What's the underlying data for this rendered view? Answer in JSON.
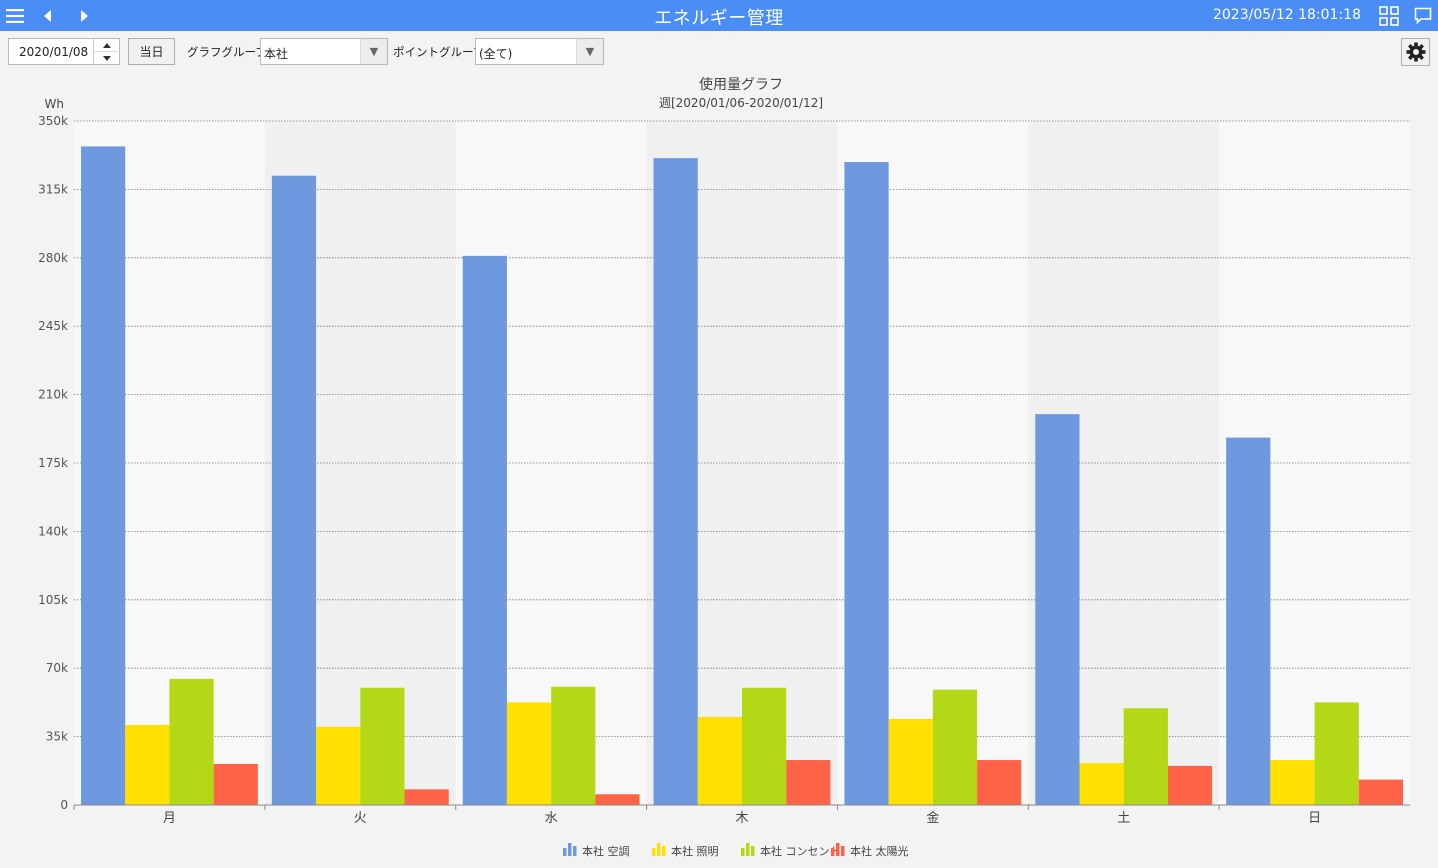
{
  "app": {
    "title": "エネルギー管理",
    "datetime": "2023/05/12 18:01:18"
  },
  "toolbar": {
    "date_value": "2020/01/08",
    "today_label": "当日",
    "graph_group_label": "グラフグループ:",
    "graph_group_value": "本社",
    "point_group_label": "ポイントグループ:",
    "point_group_value": "(全て)"
  },
  "colors": {
    "titlebar": "#4a8ef5",
    "series": [
      "#6f99df",
      "#ffe000",
      "#b3d916",
      "#ff6347"
    ]
  },
  "icons": {
    "menu": "hamburger-menu-icon",
    "back": "arrow-left-icon",
    "forward": "arrow-right-icon",
    "tiles": "grid-tiles-icon",
    "message": "speech-bubble-icon",
    "settings": "gear-icon"
  },
  "chart_data": {
    "type": "bar",
    "title": "使用量グラフ",
    "subtitle": "週[2020/01/06-2020/01/12]",
    "ylabel": "Wh",
    "ylim": [
      0,
      350000
    ],
    "yticks": [
      0,
      35000,
      70000,
      105000,
      140000,
      175000,
      210000,
      245000,
      280000,
      315000,
      350000
    ],
    "ytick_labels": [
      "0",
      "35k",
      "70k",
      "105k",
      "140k",
      "175k",
      "210k",
      "245k",
      "280k",
      "315k",
      "350k"
    ],
    "categories": [
      "月",
      "火",
      "水",
      "木",
      "金",
      "土",
      "日"
    ],
    "series": [
      {
        "name": "本社 空調",
        "values": [
          337000,
          322000,
          281000,
          331000,
          329000,
          200000,
          188000
        ]
      },
      {
        "name": "本社 照明",
        "values": [
          41000,
          40000,
          52500,
          45000,
          44000,
          21500,
          23000
        ]
      },
      {
        "name": "本社 コンセント",
        "values": [
          64500,
          60000,
          60500,
          60000,
          59000,
          49500,
          52500
        ]
      },
      {
        "name": "本社 太陽光",
        "values": [
          21000,
          8000,
          5500,
          23000,
          23000,
          20000,
          13000
        ]
      }
    ],
    "grid": true,
    "legend_position": "bottom"
  }
}
